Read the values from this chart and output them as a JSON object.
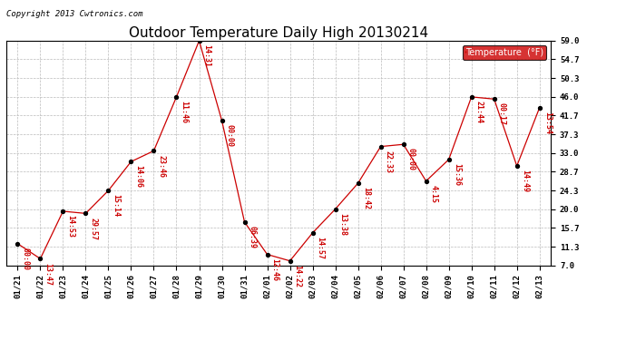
{
  "title": "Outdoor Temperature Daily High 20130214",
  "copyright": "Copyright 2013 Cwtronics.com",
  "legend_label": "Temperature  (°F)",
  "x_labels": [
    "01/21",
    "01/22",
    "01/23",
    "01/24",
    "01/25",
    "01/26",
    "01/27",
    "01/28",
    "01/29",
    "01/30",
    "01/31",
    "02/01",
    "02/02",
    "02/03",
    "02/04",
    "02/05",
    "02/06",
    "02/07",
    "02/08",
    "02/09",
    "02/10",
    "02/11",
    "02/12",
    "02/13"
  ],
  "y_values": [
    12.0,
    8.5,
    19.5,
    19.0,
    24.3,
    31.0,
    33.5,
    46.0,
    59.0,
    40.5,
    17.0,
    9.5,
    8.0,
    14.5,
    20.0,
    26.0,
    34.5,
    35.0,
    26.5,
    31.5,
    46.0,
    45.5,
    30.0,
    43.5
  ],
  "point_labels": [
    "00:00",
    "13:47",
    "14:53",
    "29:57",
    "15:14",
    "14:06",
    "23:46",
    "11:46",
    "14:31",
    "00:00",
    "06:39",
    "12:46",
    "14:22",
    "14:57",
    "13:38",
    "18:42",
    "22:33",
    "00:00",
    "4:15",
    "15:36",
    "21:44",
    "00:17",
    "14:49",
    "13:54"
  ],
  "ylim_min": 7.0,
  "ylim_max": 59.0,
  "yticks": [
    7.0,
    11.3,
    15.7,
    20.0,
    24.3,
    28.7,
    33.0,
    37.3,
    41.7,
    46.0,
    50.3,
    54.7,
    59.0
  ],
  "line_color": "#cc0000",
  "marker_color": "#000000",
  "bg_color": "#ffffff",
  "grid_color": "#bbbbbb",
  "legend_bg": "#cc0000",
  "legend_text_color": "#ffffff",
  "title_fontsize": 11,
  "label_fontsize": 6.5,
  "point_label_fontsize": 6,
  "copyright_fontsize": 6.5
}
